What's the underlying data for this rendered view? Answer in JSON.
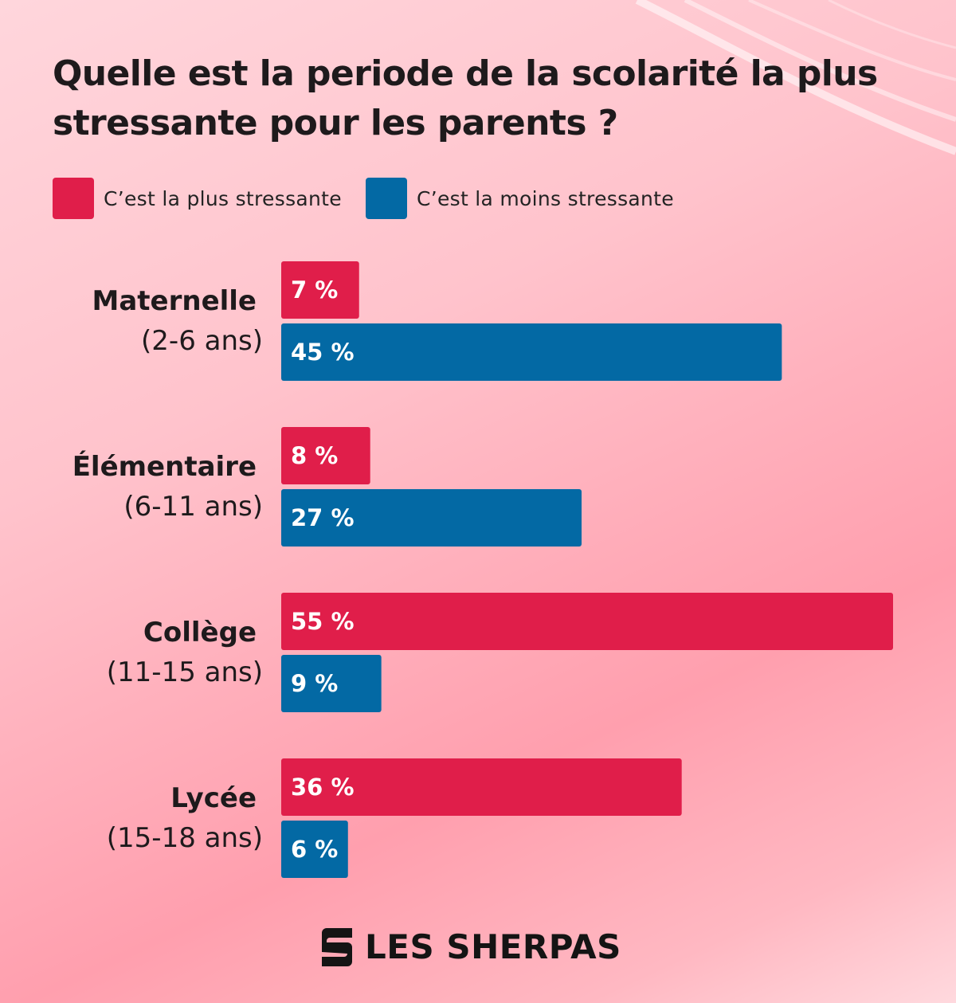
{
  "colors": {
    "most_stressful": "#e01e4a",
    "least_stressful": "#0369a4"
  },
  "chart_data": {
    "type": "bar",
    "orientation": "horizontal",
    "title": "Quelle est la periode de la scolarité la plus stressante pour les parents ?",
    "categories": [
      {
        "name": "Maternelle",
        "age": "(2-6 ans)"
      },
      {
        "name": "Élémentaire",
        "age": "(6-11 ans)"
      },
      {
        "name": "Collège",
        "age": "(11-15 ans)"
      },
      {
        "name": "Lycée",
        "age": "(15-18 ans)"
      }
    ],
    "series": [
      {
        "name": "C’est la plus stressante",
        "values": [
          7,
          8,
          55,
          36
        ],
        "labels": [
          "7 %",
          "8 %",
          "55 %",
          "36 %"
        ]
      },
      {
        "name": "C’est la moins stressante",
        "values": [
          45,
          27,
          9,
          6
        ],
        "labels": [
          "45 %",
          "27 %",
          "9 %",
          "6 %"
        ]
      }
    ],
    "unit": "%",
    "legend_position": "top-left",
    "grid": false,
    "xlim": [
      0,
      55
    ]
  },
  "brand": {
    "logo_text": "LES SHERPAS",
    "icon": "sherpas-logo-icon"
  }
}
